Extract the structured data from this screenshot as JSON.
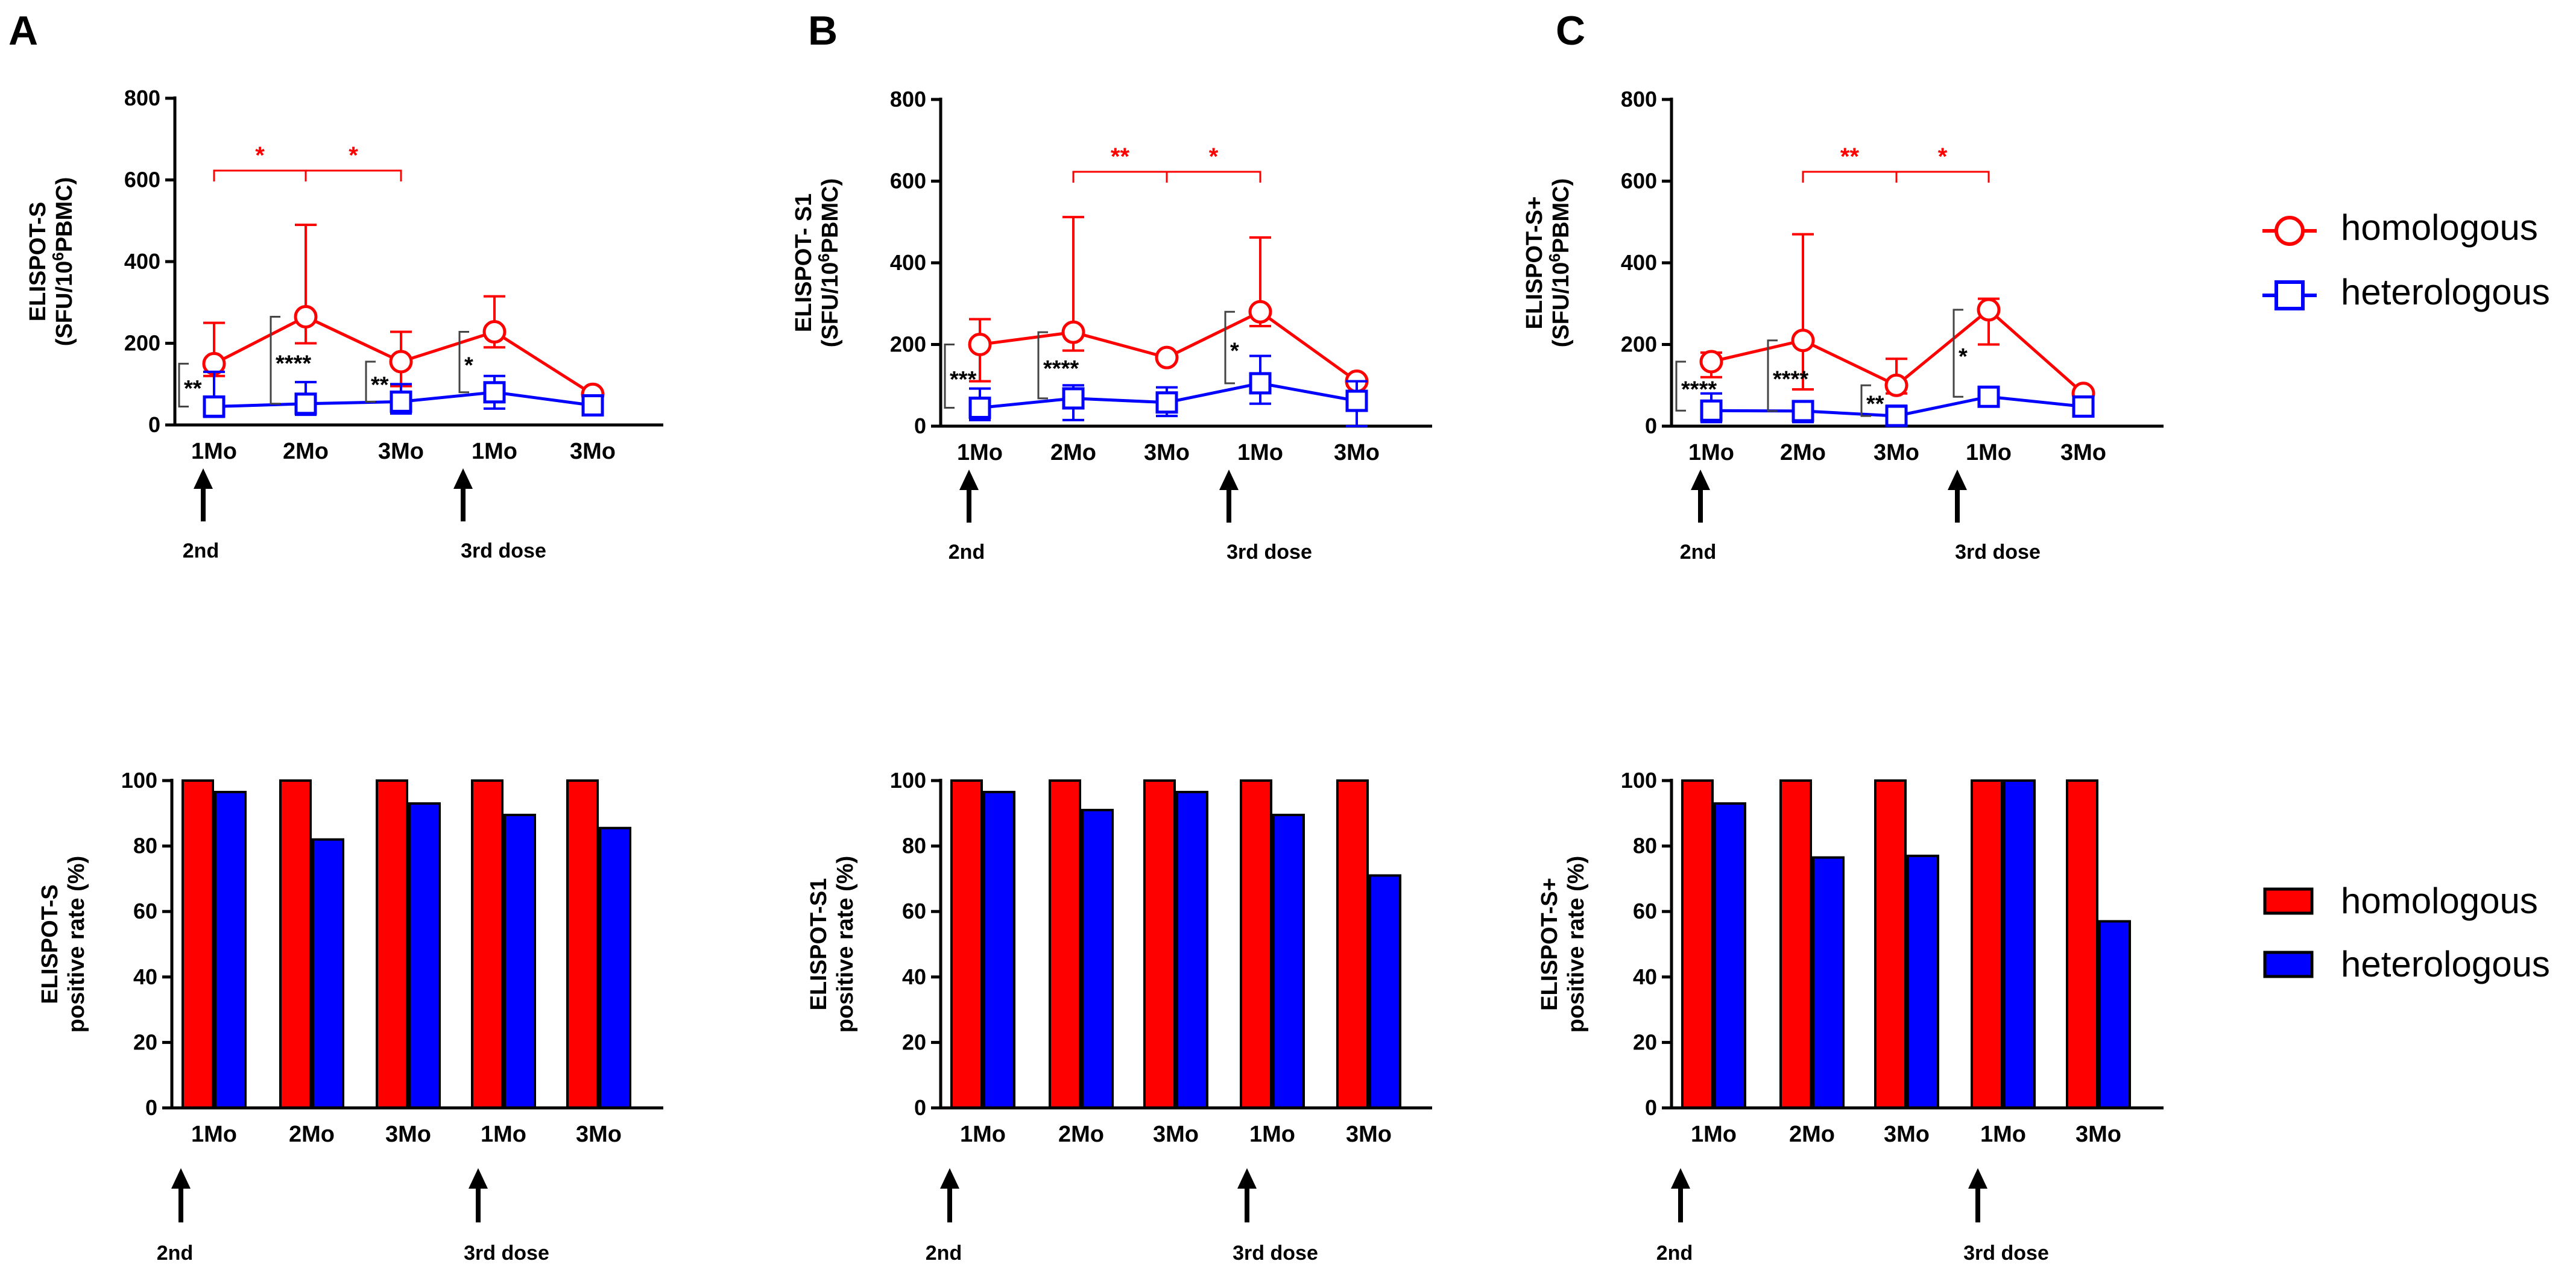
{
  "colors": {
    "homologous": "#ff0000",
    "heterologous": "#0000ff",
    "axis": "#000000",
    "bracket": "#444444"
  },
  "legend": {
    "homologous": "homologous",
    "heterologous": "heterologous"
  },
  "dose_labels": {
    "second": "2nd",
    "third": "3rd dose"
  },
  "panels": [
    {
      "letter": "A",
      "top_ylabel": [
        "ELISPOT-S",
        "(SFU/10",
        "6",
        "PBMC)"
      ],
      "bottom_ylabel": [
        "ELISPOT-S",
        "positive rate (%)"
      ]
    },
    {
      "letter": "B",
      "top_ylabel": [
        "ELISPOT- S1",
        "(SFU/10",
        "6",
        "PBMC)"
      ],
      "bottom_ylabel": [
        "ELISPOT-S1",
        "positive rate (%)"
      ]
    },
    {
      "letter": "C",
      "top_ylabel": [
        "ELISPOT-S+",
        "(SFU/10",
        "6",
        "PBMC)"
      ],
      "bottom_ylabel": [
        "ELISPOT-S+",
        "positive rate (%)"
      ]
    }
  ],
  "chart_data": [
    {
      "type": "line",
      "panel": "A",
      "title": "",
      "categories": [
        "1Mo",
        "2Mo",
        "3Mo",
        "1Mo",
        "3Mo"
      ],
      "ylabel": "ELISPOT-S (SFU/10^6PBMC)",
      "ylim": [
        0,
        800
      ],
      "yticks": [
        0,
        200,
        400,
        600,
        800
      ],
      "series": [
        {
          "name": "homologous",
          "values": [
            150,
            265,
            155,
            228,
            75
          ],
          "err_up": [
            250,
            490,
            228,
            315,
            80
          ],
          "err_down": [
            120,
            200,
            95,
            190,
            65
          ]
        },
        {
          "name": "heterologous",
          "values": [
            45,
            52,
            57,
            80,
            48
          ],
          "err_up": [
            130,
            105,
            100,
            120,
            70
          ],
          "err_down": [
            20,
            25,
            28,
            40,
            25
          ]
        }
      ],
      "pair_sig": [
        "**",
        "****",
        "**",
        "*",
        ""
      ],
      "homologous_sig": [
        {
          "from": 0,
          "to": 1,
          "label": "*"
        },
        {
          "from": 1,
          "to": 2,
          "label": "*"
        }
      ]
    },
    {
      "type": "line",
      "panel": "B",
      "title": "",
      "categories": [
        "1Mo",
        "2Mo",
        "3Mo",
        "1Mo",
        "3Mo"
      ],
      "ylabel": "ELISPOT- S1 (SFU/10^6PBMC)",
      "ylim": [
        0,
        800
      ],
      "yticks": [
        0,
        200,
        400,
        600,
        800
      ],
      "series": [
        {
          "name": "homologous",
          "values": [
            200,
            230,
            168,
            280,
            110
          ],
          "err_up": [
            262,
            512,
            175,
            462,
            118
          ],
          "err_down": [
            110,
            185,
            160,
            245,
            100
          ]
        },
        {
          "name": "heterologous",
          "values": [
            45,
            68,
            58,
            105,
            62
          ],
          "err_up": [
            92,
            100,
            95,
            172,
            110
          ],
          "err_down": [
            15,
            15,
            25,
            55,
            0
          ]
        }
      ],
      "pair_sig": [
        "***",
        "****",
        "",
        "*",
        ""
      ],
      "homologous_sig": [
        {
          "from": 1,
          "to": 2,
          "label": "**"
        },
        {
          "from": 2,
          "to": 3,
          "label": "*"
        }
      ]
    },
    {
      "type": "line",
      "panel": "C",
      "title": "",
      "categories": [
        "1Mo",
        "2Mo",
        "3Mo",
        "1Mo",
        "3Mo"
      ],
      "ylabel": "ELISPOT-S+ (SFU/10^6PBMC)",
      "ylim": [
        0,
        800
      ],
      "yticks": [
        0,
        200,
        400,
        600,
        800
      ],
      "series": [
        {
          "name": "homologous",
          "values": [
            158,
            210,
            100,
            285,
            80
          ],
          "err_up": [
            180,
            470,
            165,
            312,
            85
          ],
          "err_down": [
            120,
            90,
            80,
            200,
            70
          ]
        },
        {
          "name": "heterologous",
          "values": [
            38,
            37,
            25,
            72,
            48
          ],
          "err_up": [
            80,
            60,
            50,
            95,
            70
          ],
          "err_down": [
            10,
            10,
            5,
            50,
            25
          ]
        }
      ],
      "pair_sig": [
        "****",
        "****",
        "**",
        "*",
        ""
      ],
      "homologous_sig": [
        {
          "from": 1,
          "to": 2,
          "label": "**"
        },
        {
          "from": 2,
          "to": 3,
          "label": "*"
        }
      ]
    },
    {
      "type": "bar",
      "panel": "A",
      "title": "",
      "categories": [
        "1Mo",
        "2Mo",
        "3Mo",
        "1Mo",
        "3Mo"
      ],
      "ylabel": "ELISPOT-S positive rate (%)",
      "ylim": [
        0,
        100
      ],
      "yticks": [
        0,
        20,
        40,
        60,
        80,
        100
      ],
      "series": [
        {
          "name": "homologous",
          "values": [
            100,
            100,
            100,
            100,
            100
          ]
        },
        {
          "name": "heterologous",
          "values": [
            96.5,
            82,
            93,
            89.5,
            85.5
          ]
        }
      ]
    },
    {
      "type": "bar",
      "panel": "B",
      "title": "",
      "categories": [
        "1Mo",
        "2Mo",
        "3Mo",
        "1Mo",
        "3Mo"
      ],
      "ylabel": "ELISPOT-S1 positive rate (%)",
      "ylim": [
        0,
        100
      ],
      "yticks": [
        0,
        20,
        40,
        60,
        80,
        100
      ],
      "series": [
        {
          "name": "homologous",
          "values": [
            100,
            100,
            100,
            100,
            100
          ]
        },
        {
          "name": "heterologous",
          "values": [
            96.5,
            91,
            96.5,
            89.5,
            71
          ]
        }
      ]
    },
    {
      "type": "bar",
      "panel": "C",
      "title": "",
      "categories": [
        "1Mo",
        "2Mo",
        "3Mo",
        "1Mo",
        "3Mo"
      ],
      "ylabel": "ELISPOT-S+ positive rate (%)",
      "ylim": [
        0,
        100
      ],
      "yticks": [
        0,
        20,
        40,
        60,
        80,
        100
      ],
      "series": [
        {
          "name": "homologous",
          "values": [
            100,
            100,
            100,
            100,
            100
          ]
        },
        {
          "name": "heterologous",
          "values": [
            93,
            76.5,
            77,
            100,
            57
          ]
        }
      ]
    }
  ]
}
